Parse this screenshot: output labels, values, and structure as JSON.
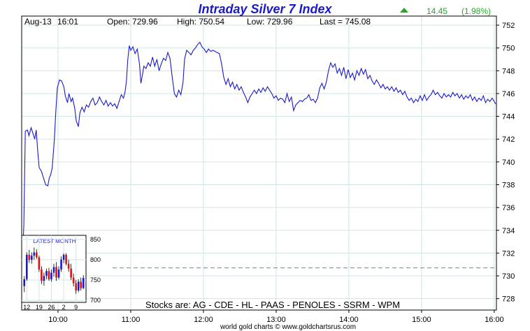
{
  "chart_data": {
    "type": "line",
    "title": "Intraday Silver 7 Index",
    "change": {
      "value": "14.45",
      "percent": "(1.98%)",
      "direction": "up"
    },
    "info": {
      "date": "Aug-13",
      "time": "16:01",
      "open": "Open: 729.96",
      "high": "High: 750.54",
      "low": "Low: 729.96",
      "last": "Last = 745.08"
    },
    "ylim": [
      727,
      752.8
    ],
    "yticks": [
      728,
      730,
      732,
      734,
      736,
      738,
      740,
      742,
      744,
      746,
      748,
      750,
      752
    ],
    "xlim": [
      9.5,
      16.03
    ],
    "xticks": [
      {
        "x": 10,
        "label": "10:00"
      },
      {
        "x": 11,
        "label": "11:00"
      },
      {
        "x": 12,
        "label": "12:00"
      },
      {
        "x": 13,
        "label": "13:00"
      },
      {
        "x": 14,
        "label": "14:00"
      },
      {
        "x": 15,
        "label": "15:00"
      },
      {
        "x": 16,
        "label": "16:00"
      }
    ],
    "grid": true,
    "reference_line": 730.7,
    "series": [
      {
        "points": [
          [
            9.5,
            729.96
          ],
          [
            9.53,
            734.5
          ],
          [
            9.55,
            742.7
          ],
          [
            9.58,
            742.8
          ],
          [
            9.6,
            742.3
          ],
          [
            9.63,
            743.0
          ],
          [
            9.65,
            742.6
          ],
          [
            9.68,
            742.0
          ],
          [
            9.7,
            742.8
          ],
          [
            9.72,
            741.0
          ],
          [
            9.74,
            739.5
          ],
          [
            9.77,
            739.2
          ],
          [
            9.8,
            738.6
          ],
          [
            9.83,
            738.0
          ],
          [
            9.86,
            737.9
          ],
          [
            9.88,
            738.6
          ],
          [
            9.9,
            738.9
          ],
          [
            9.92,
            739.5
          ],
          [
            9.95,
            742.0
          ],
          [
            9.97,
            744.5
          ],
          [
            9.99,
            746.5
          ],
          [
            10.02,
            747.2
          ],
          [
            10.05,
            747.1
          ],
          [
            10.08,
            746.6
          ],
          [
            10.1,
            745.8
          ],
          [
            10.13,
            745.2
          ],
          [
            10.15,
            746.0
          ],
          [
            10.18,
            745.3
          ],
          [
            10.2,
            745.6
          ],
          [
            10.23,
            744.7
          ],
          [
            10.25,
            743.6
          ],
          [
            10.28,
            743.1
          ],
          [
            10.3,
            744.3
          ],
          [
            10.33,
            744.8
          ],
          [
            10.36,
            744.4
          ],
          [
            10.39,
            745.0
          ],
          [
            10.42,
            744.8
          ],
          [
            10.45,
            745.3
          ],
          [
            10.48,
            745.6
          ],
          [
            10.51,
            745.0
          ],
          [
            10.54,
            745.2
          ],
          [
            10.57,
            745.7
          ],
          [
            10.6,
            745.3
          ],
          [
            10.63,
            745.0
          ],
          [
            10.66,
            745.4
          ],
          [
            10.69,
            744.9
          ],
          [
            10.72,
            745.2
          ],
          [
            10.75,
            744.9
          ],
          [
            10.78,
            745.1
          ],
          [
            10.81,
            744.7
          ],
          [
            10.84,
            745.3
          ],
          [
            10.87,
            745.9
          ],
          [
            10.9,
            745.6
          ],
          [
            10.92,
            746.1
          ],
          [
            10.94,
            747.0
          ],
          [
            10.96,
            749.0
          ],
          [
            10.98,
            750.2
          ],
          [
            11.0,
            749.8
          ],
          [
            11.03,
            750.1
          ],
          [
            11.06,
            749.5
          ],
          [
            11.09,
            749.9
          ],
          [
            11.12,
            748.6
          ],
          [
            11.14,
            746.9
          ],
          [
            11.16,
            747.6
          ],
          [
            11.18,
            748.4
          ],
          [
            11.21,
            748.2
          ],
          [
            11.24,
            748.7
          ],
          [
            11.27,
            748.4
          ],
          [
            11.3,
            749.2
          ],
          [
            11.33,
            748.4
          ],
          [
            11.36,
            749.0
          ],
          [
            11.39,
            748.0
          ],
          [
            11.42,
            748.6
          ],
          [
            11.45,
            749.1
          ],
          [
            11.48,
            748.9
          ],
          [
            11.51,
            749.6
          ],
          [
            11.54,
            749.1
          ],
          [
            11.57,
            747.5
          ],
          [
            11.6,
            746.0
          ],
          [
            11.63,
            745.7
          ],
          [
            11.66,
            746.3
          ],
          [
            11.69,
            745.9
          ],
          [
            11.72,
            747.0
          ],
          [
            11.74,
            749.0
          ],
          [
            11.77,
            749.8
          ],
          [
            11.8,
            749.6
          ],
          [
            11.83,
            749.4
          ],
          [
            11.86,
            749.8
          ],
          [
            11.89,
            750.0
          ],
          [
            11.92,
            750.3
          ],
          [
            11.95,
            750.5
          ],
          [
            11.98,
            750.1
          ],
          [
            12.01,
            749.9
          ],
          [
            12.04,
            749.6
          ],
          [
            12.07,
            749.9
          ],
          [
            12.1,
            749.7
          ],
          [
            12.13,
            749.8
          ],
          [
            12.16,
            749.7
          ],
          [
            12.19,
            749.6
          ],
          [
            12.22,
            749.5
          ],
          [
            12.25,
            748.6
          ],
          [
            12.28,
            747.4
          ],
          [
            12.31,
            746.8
          ],
          [
            12.34,
            747.3
          ],
          [
            12.37,
            746.6
          ],
          [
            12.4,
            747.0
          ],
          [
            12.43,
            746.4
          ],
          [
            12.46,
            746.8
          ],
          [
            12.49,
            746.3
          ],
          [
            12.52,
            746.6
          ],
          [
            12.55,
            746.1
          ],
          [
            12.58,
            745.7
          ],
          [
            12.61,
            745.2
          ],
          [
            12.64,
            745.7
          ],
          [
            12.67,
            746.0
          ],
          [
            12.7,
            746.3
          ],
          [
            12.73,
            746.0
          ],
          [
            12.76,
            746.4
          ],
          [
            12.79,
            746.1
          ],
          [
            12.82,
            746.5
          ],
          [
            12.85,
            746.2
          ],
          [
            12.88,
            746.6
          ],
          [
            12.91,
            746.3
          ],
          [
            12.94,
            746.0
          ],
          [
            12.97,
            745.6
          ],
          [
            13.0,
            745.8
          ],
          [
            13.03,
            745.4
          ],
          [
            13.06,
            745.6
          ],
          [
            13.09,
            745.5
          ],
          [
            13.12,
            745.2
          ],
          [
            13.15,
            746.0
          ],
          [
            13.18,
            745.3
          ],
          [
            13.21,
            745.7
          ],
          [
            13.24,
            744.5
          ],
          [
            13.27,
            745.0
          ],
          [
            13.3,
            745.2
          ],
          [
            13.33,
            745.4
          ],
          [
            13.36,
            745.3
          ],
          [
            13.39,
            745.5
          ],
          [
            13.42,
            745.6
          ],
          [
            13.45,
            745.9
          ],
          [
            13.48,
            745.4
          ],
          [
            13.51,
            745.5
          ],
          [
            13.54,
            745.2
          ],
          [
            13.57,
            745.6
          ],
          [
            13.6,
            746.5
          ],
          [
            13.63,
            746.9
          ],
          [
            13.66,
            746.4
          ],
          [
            13.69,
            747.0
          ],
          [
            13.72,
            748.0
          ],
          [
            13.75,
            748.7
          ],
          [
            13.78,
            748.3
          ],
          [
            13.81,
            748.6
          ],
          [
            13.84,
            747.8
          ],
          [
            13.87,
            748.2
          ],
          [
            13.9,
            747.6
          ],
          [
            13.93,
            748.3
          ],
          [
            13.96,
            747.3
          ],
          [
            13.99,
            748.1
          ],
          [
            14.02,
            747.4
          ],
          [
            14.05,
            747.8
          ],
          [
            14.08,
            747.2
          ],
          [
            14.11,
            748.0
          ],
          [
            14.14,
            747.6
          ],
          [
            14.17,
            748.2
          ],
          [
            14.2,
            747.7
          ],
          [
            14.23,
            748.1
          ],
          [
            14.26,
            747.3
          ],
          [
            14.29,
            747.6
          ],
          [
            14.32,
            747.1
          ],
          [
            14.35,
            746.8
          ],
          [
            14.38,
            747.2
          ],
          [
            14.41,
            746.9
          ],
          [
            14.44,
            746.5
          ],
          [
            14.47,
            746.8
          ],
          [
            14.5,
            746.4
          ],
          [
            14.53,
            746.6
          ],
          [
            14.56,
            746.3
          ],
          [
            14.59,
            746.6
          ],
          [
            14.62,
            746.2
          ],
          [
            14.65,
            746.5
          ],
          [
            14.68,
            746.1
          ],
          [
            14.71,
            746.3
          ],
          [
            14.74,
            745.9
          ],
          [
            14.77,
            746.2
          ],
          [
            14.8,
            745.7
          ],
          [
            14.83,
            745.4
          ],
          [
            14.86,
            745.6
          ],
          [
            14.89,
            745.2
          ],
          [
            14.92,
            745.5
          ],
          [
            14.95,
            745.3
          ],
          [
            14.98,
            745.8
          ],
          [
            15.01,
            745.4
          ],
          [
            15.04,
            745.9
          ],
          [
            15.07,
            745.4
          ],
          [
            15.1,
            745.7
          ],
          [
            15.13,
            745.9
          ],
          [
            15.16,
            746.3
          ],
          [
            15.19,
            745.9
          ],
          [
            15.22,
            746.1
          ],
          [
            15.25,
            745.8
          ],
          [
            15.28,
            745.6
          ],
          [
            15.31,
            746.0
          ],
          [
            15.34,
            745.7
          ],
          [
            15.37,
            745.9
          ],
          [
            15.4,
            745.7
          ],
          [
            15.43,
            746.1
          ],
          [
            15.46,
            745.8
          ],
          [
            15.49,
            746.0
          ],
          [
            15.52,
            745.6
          ],
          [
            15.55,
            745.9
          ],
          [
            15.58,
            745.5
          ],
          [
            15.61,
            745.8
          ],
          [
            15.64,
            745.6
          ],
          [
            15.67,
            745.9
          ],
          [
            15.7,
            745.4
          ],
          [
            15.73,
            745.7
          ],
          [
            15.76,
            745.3
          ],
          [
            15.79,
            745.6
          ],
          [
            15.82,
            745.4
          ],
          [
            15.85,
            745.8
          ],
          [
            15.88,
            745.2
          ],
          [
            15.91,
            745.5
          ],
          [
            15.94,
            745.3
          ],
          [
            15.97,
            745.6
          ],
          [
            16.0,
            745.3
          ],
          [
            16.02,
            745.08
          ]
        ]
      }
    ],
    "subtitle": "Stocks are: AG - CDE - HL - PAAS - PENOLES - SSRM - WPM",
    "footer": "world gold charts © www.goldchartsrus.com",
    "inset": {
      "title": "LATEST MONTH",
      "ylim": [
        695,
        860
      ],
      "yticks": [
        700,
        750,
        800,
        850
      ],
      "xticks": [
        "12",
        "19",
        "26",
        "2",
        "9"
      ],
      "candles": [
        {
          "o": 735,
          "h": 760,
          "l": 720,
          "c": 752
        },
        {
          "o": 752,
          "h": 818,
          "l": 748,
          "c": 812
        },
        {
          "o": 812,
          "h": 824,
          "l": 792,
          "c": 800
        },
        {
          "o": 800,
          "h": 818,
          "l": 790,
          "c": 810
        },
        {
          "o": 810,
          "h": 830,
          "l": 800,
          "c": 818
        },
        {
          "o": 818,
          "h": 826,
          "l": 802,
          "c": 806
        },
        {
          "o": 806,
          "h": 810,
          "l": 770,
          "c": 776
        },
        {
          "o": 776,
          "h": 784,
          "l": 740,
          "c": 748
        },
        {
          "o": 748,
          "h": 768,
          "l": 736,
          "c": 760
        },
        {
          "o": 760,
          "h": 778,
          "l": 752,
          "c": 772
        },
        {
          "o": 772,
          "h": 780,
          "l": 748,
          "c": 752
        },
        {
          "o": 752,
          "h": 776,
          "l": 746,
          "c": 768
        },
        {
          "o": 768,
          "h": 790,
          "l": 758,
          "c": 782
        },
        {
          "o": 782,
          "h": 794,
          "l": 748,
          "c": 756
        },
        {
          "o": 756,
          "h": 784,
          "l": 752,
          "c": 776
        },
        {
          "o": 776,
          "h": 808,
          "l": 770,
          "c": 800
        },
        {
          "o": 800,
          "h": 816,
          "l": 792,
          "c": 812
        },
        {
          "o": 812,
          "h": 816,
          "l": 786,
          "c": 790
        },
        {
          "o": 790,
          "h": 800,
          "l": 770,
          "c": 778
        },
        {
          "o": 778,
          "h": 790,
          "l": 750,
          "c": 756
        },
        {
          "o": 756,
          "h": 766,
          "l": 734,
          "c": 742
        },
        {
          "o": 742,
          "h": 750,
          "l": 716,
          "c": 724
        },
        {
          "o": 724,
          "h": 752,
          "l": 720,
          "c": 746
        },
        {
          "o": 746,
          "h": 756,
          "l": 724,
          "c": 730
        },
        {
          "o": 730,
          "h": 762,
          "l": 728,
          "c": 755
        }
      ]
    },
    "colors": {
      "line": "#1a1acc",
      "title": "#1a1acc",
      "up": "#22aa22",
      "grid": "#cfe5e5",
      "reference": "#7777cc",
      "candle_up": "#1a1acc",
      "candle_down": "#dd1111",
      "inset_title": "#1a1acc"
    }
  }
}
